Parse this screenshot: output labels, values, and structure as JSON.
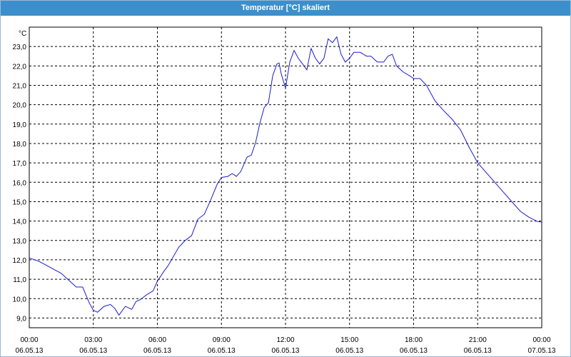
{
  "window": {
    "title": "Temperatur [°C] skaliert"
  },
  "colors": {
    "titlebar": "#3c8fca",
    "line": "#1c1ccc",
    "grid": "#000000",
    "background": "#ffffff"
  },
  "chart_data": {
    "type": "line",
    "title": "Temperatur [°C] skaliert",
    "ylabel": "°C",
    "xlabel": "",
    "grid": true,
    "ylim": [
      8.5,
      24.0
    ],
    "xlim": [
      0,
      24
    ],
    "yticks": [
      9.0,
      10.0,
      11.0,
      12.0,
      13.0,
      14.0,
      15.0,
      16.0,
      17.0,
      18.0,
      19.0,
      20.0,
      21.0,
      22.0,
      23.0
    ],
    "ytick_labels": [
      "9,0",
      "10,0",
      "11,0",
      "12,0",
      "13,0",
      "14,0",
      "15,0",
      "16,0",
      "17,0",
      "18,0",
      "19,0",
      "20,0",
      "21,0",
      "22,0",
      "23,0"
    ],
    "xticks": [
      {
        "x": 0,
        "time": "00:00",
        "date": "06.05.13"
      },
      {
        "x": 3,
        "time": "03:00",
        "date": "06.05.13"
      },
      {
        "x": 6,
        "time": "06:00",
        "date": "06.05.13"
      },
      {
        "x": 9,
        "time": "09:00",
        "date": "06.05.13"
      },
      {
        "x": 12,
        "time": "12:00",
        "date": "06.05.13"
      },
      {
        "x": 15,
        "time": "15:00",
        "date": "06.05.13"
      },
      {
        "x": 18,
        "time": "18:00",
        "date": "06.05.13"
      },
      {
        "x": 21,
        "time": "21:00",
        "date": "06.05.13"
      },
      {
        "x": 24,
        "time": "00:00",
        "date": "07.05.13"
      }
    ],
    "series": [
      {
        "x": [
          0.0,
          0.5,
          1.0,
          1.5,
          1.8,
          2.0,
          2.2,
          2.5,
          2.8,
          3.0,
          3.2,
          3.5,
          3.8,
          4.0,
          4.2,
          4.5,
          4.8,
          5.0,
          5.2,
          5.5,
          5.8,
          6.0,
          6.3,
          6.5,
          7.0,
          7.3,
          7.6,
          7.9,
          8.2,
          8.5,
          8.8,
          9.0,
          9.3,
          9.5,
          9.7,
          9.9,
          10.2,
          10.4,
          10.6,
          10.8,
          11.0,
          11.2,
          11.4,
          11.6,
          11.7,
          11.8,
          12.0,
          12.2,
          12.4,
          12.6,
          12.8,
          13.0,
          13.2,
          13.4,
          13.6,
          13.8,
          14.0,
          14.2,
          14.4,
          14.6,
          14.8,
          15.0,
          15.2,
          15.5,
          15.8,
          16.0,
          16.3,
          16.6,
          16.8,
          17.0,
          17.2,
          17.5,
          17.8,
          18.0,
          18.3,
          18.6,
          19.0,
          19.4,
          19.8,
          20.2,
          20.6,
          21.0,
          21.4,
          21.8,
          22.2,
          22.6,
          23.0,
          23.4,
          23.8,
          24.0
        ],
        "values": [
          12.1,
          11.9,
          11.6,
          11.3,
          11.0,
          10.8,
          10.6,
          10.6,
          9.8,
          9.4,
          9.3,
          9.6,
          9.7,
          9.5,
          9.15,
          9.6,
          9.45,
          9.85,
          9.95,
          10.2,
          10.4,
          10.9,
          11.4,
          11.7,
          12.65,
          13.0,
          13.25,
          14.1,
          14.35,
          15.1,
          15.9,
          16.25,
          16.3,
          16.45,
          16.3,
          16.55,
          17.3,
          17.4,
          18.05,
          19.05,
          19.85,
          20.1,
          21.5,
          22.1,
          22.15,
          21.6,
          20.85,
          22.2,
          22.8,
          22.4,
          22.1,
          21.8,
          22.9,
          22.4,
          22.1,
          22.4,
          23.4,
          23.2,
          23.5,
          22.6,
          22.2,
          22.4,
          22.7,
          22.7,
          22.5,
          22.5,
          22.2,
          22.2,
          22.5,
          22.6,
          22.0,
          21.7,
          21.5,
          21.35,
          21.35,
          21.0,
          20.2,
          19.7,
          19.25,
          18.7,
          17.8,
          17.0,
          16.5,
          16.0,
          15.5,
          15.0,
          14.5,
          14.2,
          13.98,
          13.95
        ]
      }
    ]
  }
}
